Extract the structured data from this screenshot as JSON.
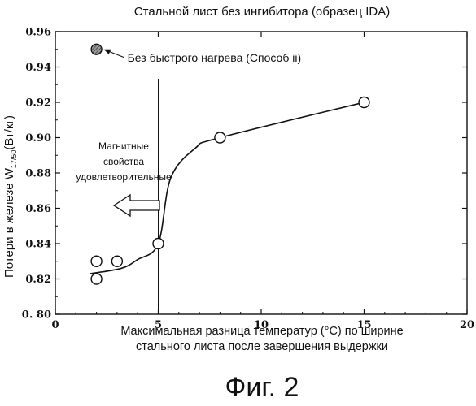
{
  "chart_data": {
    "type": "scatter",
    "title": "Стальной лист без ингибитора (образец IDA)",
    "xlabel_line1": "Максимальная разница температур (°C) по ширине",
    "xlabel_line2": "стального листа после завершения выдержки",
    "ylabel_main": "Потери в железе W",
    "ylabel_sub": "17/50",
    "ylabel_unit": "(Вт/кг)",
    "xlim": [
      0,
      20
    ],
    "ylim": [
      0.8,
      0.96
    ],
    "x_ticks": [
      0,
      5,
      10,
      15,
      20
    ],
    "x_tick_labels": [
      "0",
      "5",
      "10",
      "15",
      "20"
    ],
    "y_ticks": [
      0.8,
      0.82,
      0.84,
      0.86,
      0.88,
      0.9,
      0.92,
      0.94,
      0.96
    ],
    "y_tick_labels": [
      "0. 80",
      "0.82",
      "0.84",
      "0.86",
      "0.88",
      "0.90",
      "0.92",
      "0.94",
      "0.96"
    ],
    "points": [
      {
        "x": 2,
        "y": 0.83
      },
      {
        "x": 2,
        "y": 0.82
      },
      {
        "x": 3,
        "y": 0.83
      },
      {
        "x": 5,
        "y": 0.84
      },
      {
        "x": 8,
        "y": 0.9
      },
      {
        "x": 15,
        "y": 0.92
      }
    ],
    "reference_point": {
      "x": 2,
      "y": 0.95,
      "label": "Без быстрого нагрева (Способ ii)"
    },
    "trend_line": [
      {
        "x": 1.7,
        "y": 0.823
      },
      {
        "x": 3.2,
        "y": 0.826
      },
      {
        "x": 4.0,
        "y": 0.831
      },
      {
        "x": 5.0,
        "y": 0.84
      },
      {
        "x": 5.6,
        "y": 0.877
      },
      {
        "x": 6.8,
        "y": 0.894
      },
      {
        "x": 8.0,
        "y": 0.9
      },
      {
        "x": 15.0,
        "y": 0.92
      }
    ],
    "vertical_line_x": 5,
    "annotation": {
      "lines": [
        "Магнитные",
        "свойства",
        "удовлетворительные"
      ]
    },
    "colors": {
      "axis": "#111111",
      "marker_fill": "#ffffff",
      "reference_fill": "#777777"
    }
  },
  "caption": "Фиг. 2"
}
